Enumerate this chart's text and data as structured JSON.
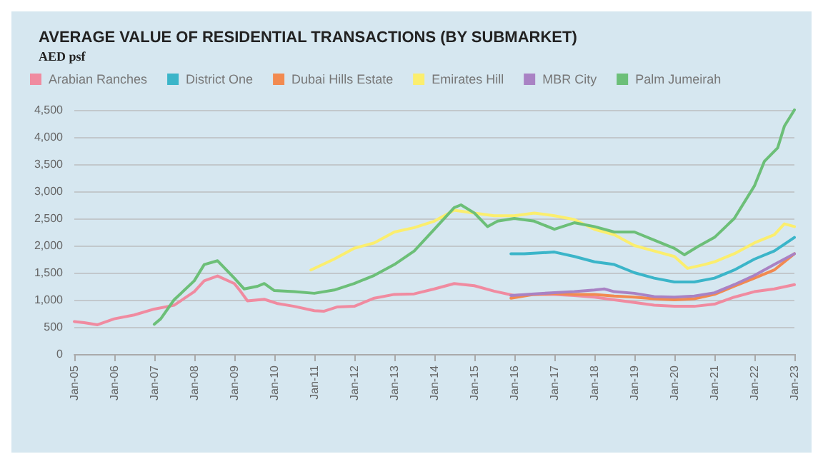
{
  "chart_data": {
    "type": "line",
    "title": "AVERAGE VALUE OF RESIDENTIAL TRANSACTIONS (BY SUBMARKET)",
    "subtitle": "AED psf",
    "xlim": [
      "2005-01",
      "2023-01"
    ],
    "xticks": [
      {
        "value": "2005-01",
        "label": "Jan-05"
      },
      {
        "value": "2006-01",
        "label": "Jan-06"
      },
      {
        "value": "2007-01",
        "label": "Jan-07"
      },
      {
        "value": "2008-01",
        "label": "Jan-08"
      },
      {
        "value": "2009-01",
        "label": "Jan-09"
      },
      {
        "value": "2010-01",
        "label": "Jan-10"
      },
      {
        "value": "2011-01",
        "label": "Jan-11"
      },
      {
        "value": "2012-01",
        "label": "Jan-12"
      },
      {
        "value": "2013-01",
        "label": "Jan-13"
      },
      {
        "value": "2014-01",
        "label": "Jan-14"
      },
      {
        "value": "2015-01",
        "label": "Jan-15"
      },
      {
        "value": "2016-01",
        "label": "Jan-16"
      },
      {
        "value": "2017-01",
        "label": "Jan-17"
      },
      {
        "value": "2018-01",
        "label": "Jan-18"
      },
      {
        "value": "2019-01",
        "label": "Jan-19"
      },
      {
        "value": "2020-01",
        "label": "Jan-20"
      },
      {
        "value": "2021-01",
        "label": "Jan-21"
      },
      {
        "value": "2022-01",
        "label": "Jan-22"
      },
      {
        "value": "2023-01",
        "label": "Jan-23"
      }
    ],
    "ylim": [
      0,
      4500
    ],
    "yticks": [
      {
        "value": 0,
        "label": "0"
      },
      {
        "value": 500,
        "label": "500"
      },
      {
        "value": 1000,
        "label": "1,000"
      },
      {
        "value": 1500,
        "label": "1,500"
      },
      {
        "value": 2000,
        "label": "2,000"
      },
      {
        "value": 2500,
        "label": "2,500"
      },
      {
        "value": 3000,
        "label": "3,000"
      },
      {
        "value": 3500,
        "label": "3,500"
      },
      {
        "value": 4000,
        "label": "4,000"
      },
      {
        "value": 4500,
        "label": "4,500"
      }
    ],
    "grid": "y",
    "legend": "top left",
    "marker": "none",
    "line_style": "solid",
    "series": [
      {
        "name": "Arabian Ranches",
        "color": "#f08ba0",
        "x": [
          "2005-01",
          "2005-04",
          "2005-08",
          "2006-01",
          "2006-07",
          "2007-01",
          "2007-07",
          "2008-01",
          "2008-04",
          "2008-08",
          "2009-01",
          "2009-03",
          "2009-05",
          "2009-10",
          "2010-02",
          "2010-07",
          "2011-01",
          "2011-04",
          "2011-08",
          "2012-01",
          "2012-07",
          "2013-01",
          "2013-07",
          "2014-01",
          "2014-07",
          "2015-01",
          "2015-07",
          "2016-01",
          "2016-07",
          "2017-01",
          "2017-07",
          "2018-01",
          "2018-07",
          "2019-01",
          "2019-07",
          "2020-01",
          "2020-07",
          "2021-01",
          "2021-07",
          "2022-01",
          "2022-07",
          "2023-01"
        ],
        "values": [
          600,
          580,
          540,
          650,
          720,
          830,
          900,
          1150,
          1350,
          1440,
          1300,
          1150,
          980,
          1010,
          930,
          880,
          800,
          790,
          870,
          880,
          1030,
          1100,
          1110,
          1200,
          1300,
          1260,
          1160,
          1080,
          1100,
          1100,
          1080,
          1050,
          1000,
          950,
          900,
          880,
          880,
          920,
          1050,
          1150,
          1200,
          1280
        ]
      },
      {
        "name": "District One",
        "color": "#3bb5c9",
        "x": [
          "2015-12",
          "2016-04",
          "2017-01",
          "2017-07",
          "2018-01",
          "2018-07",
          "2019-01",
          "2019-07",
          "2020-01",
          "2020-07",
          "2021-01",
          "2021-07",
          "2022-01",
          "2022-07",
          "2023-01"
        ],
        "values": [
          1850,
          1850,
          1880,
          1800,
          1700,
          1650,
          1500,
          1400,
          1330,
          1330,
          1400,
          1550,
          1750,
          1900,
          2150
        ]
      },
      {
        "name": "Dubai Hills Estate",
        "color": "#f28a50",
        "x": [
          "2015-12",
          "2016-07",
          "2017-01",
          "2017-07",
          "2018-01",
          "2018-07",
          "2019-01",
          "2019-07",
          "2020-01",
          "2020-07",
          "2021-01",
          "2021-07",
          "2022-01",
          "2022-07",
          "2023-01"
        ],
        "values": [
          1030,
          1100,
          1120,
          1100,
          1100,
          1070,
          1050,
          1020,
          1000,
          1020,
          1100,
          1250,
          1400,
          1550,
          1850
        ]
      },
      {
        "name": "Emirates Hill",
        "color": "#fbee6e",
        "x": [
          "2010-12",
          "2011-07",
          "2012-01",
          "2012-07",
          "2013-01",
          "2013-07",
          "2014-01",
          "2014-07",
          "2015-01",
          "2015-07",
          "2016-01",
          "2016-07",
          "2017-01",
          "2017-07",
          "2018-01",
          "2018-07",
          "2019-01",
          "2019-07",
          "2020-01",
          "2020-05",
          "2020-10",
          "2021-01",
          "2021-07",
          "2022-01",
          "2022-07",
          "2022-10",
          "2023-01"
        ],
        "values": [
          1550,
          1750,
          1950,
          2050,
          2250,
          2330,
          2450,
          2650,
          2600,
          2550,
          2550,
          2600,
          2550,
          2480,
          2300,
          2200,
          2000,
          1900,
          1800,
          1580,
          1650,
          1700,
          1850,
          2050,
          2200,
          2400,
          2350
        ]
      },
      {
        "name": "MBR City",
        "color": "#a982c4",
        "x": [
          "2015-12",
          "2016-07",
          "2017-01",
          "2017-07",
          "2018-01",
          "2018-04",
          "2018-07",
          "2019-01",
          "2019-07",
          "2020-01",
          "2020-07",
          "2021-01",
          "2021-07",
          "2022-01",
          "2022-07",
          "2023-01"
        ],
        "values": [
          1080,
          1110,
          1130,
          1150,
          1180,
          1200,
          1150,
          1120,
          1060,
          1050,
          1070,
          1130,
          1280,
          1450,
          1650,
          1850
        ]
      },
      {
        "name": "Palm Jumeirah",
        "color": "#6cbf78",
        "x": [
          "2007-01",
          "2007-03",
          "2007-07",
          "2008-01",
          "2008-04",
          "2008-08",
          "2009-01",
          "2009-04",
          "2009-08",
          "2009-10",
          "2010-01",
          "2010-07",
          "2011-01",
          "2011-07",
          "2012-01",
          "2012-07",
          "2013-01",
          "2013-07",
          "2014-01",
          "2014-07",
          "2014-09",
          "2015-01",
          "2015-05",
          "2015-08",
          "2016-01",
          "2016-07",
          "2017-01",
          "2017-07",
          "2018-01",
          "2018-07",
          "2019-01",
          "2019-07",
          "2020-01",
          "2020-04",
          "2020-08",
          "2021-01",
          "2021-07",
          "2022-01",
          "2022-04",
          "2022-08",
          "2022-10",
          "2023-01"
        ],
        "values": [
          550,
          650,
          1000,
          1350,
          1650,
          1720,
          1400,
          1200,
          1250,
          1300,
          1170,
          1150,
          1120,
          1180,
          1300,
          1450,
          1650,
          1900,
          2300,
          2700,
          2750,
          2600,
          2350,
          2450,
          2500,
          2450,
          2300,
          2420,
          2350,
          2250,
          2250,
          2100,
          1950,
          1830,
          1980,
          2150,
          2500,
          3100,
          3550,
          3800,
          4200,
          4500
        ]
      }
    ]
  }
}
